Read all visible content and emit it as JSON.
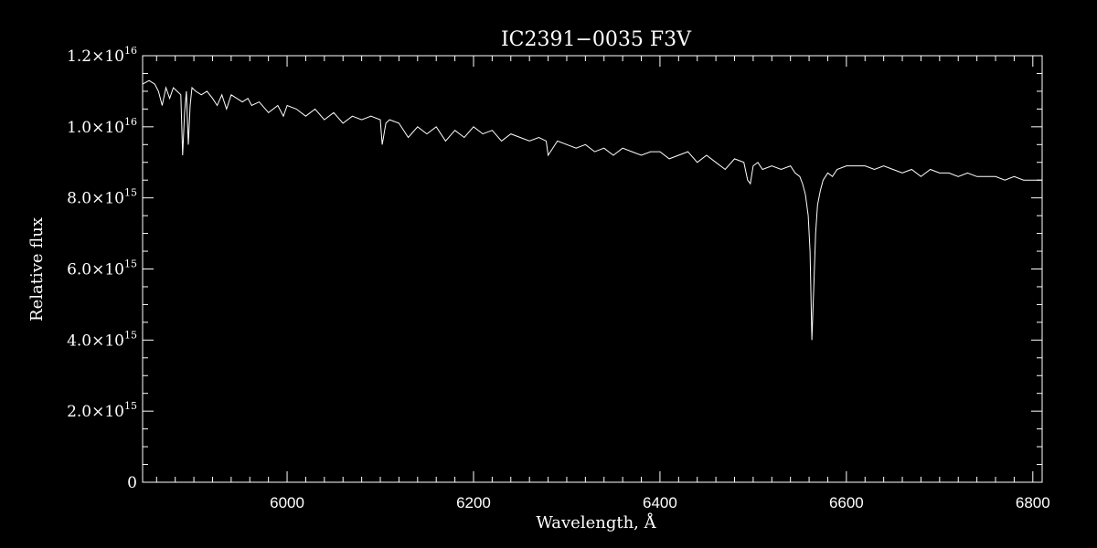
{
  "chart_data": {
    "type": "line",
    "title": "IC2391−0035   F3V",
    "xlabel": "Wavelength, Å",
    "ylabel": "Relative flux",
    "xlim": [
      5845,
      6810
    ],
    "ylim": [
      0,
      1.2e+16
    ],
    "x_ticks": [
      {
        "value": 6000,
        "label": "6000"
      },
      {
        "value": 6200,
        "label": "6200"
      },
      {
        "value": 6400,
        "label": "6400"
      },
      {
        "value": 6600,
        "label": "6600"
      },
      {
        "value": 6800,
        "label": "6800"
      }
    ],
    "y_ticks": [
      {
        "value": 0,
        "mantissa": "0",
        "exp": ""
      },
      {
        "value": 2000000000000000.0,
        "mantissa": "2.0×10",
        "exp": "15"
      },
      {
        "value": 4000000000000000.0,
        "mantissa": "4.0×10",
        "exp": "15"
      },
      {
        "value": 6000000000000000.0,
        "mantissa": "6.0×10",
        "exp": "15"
      },
      {
        "value": 8000000000000000.0,
        "mantissa": "8.0×10",
        "exp": "15"
      },
      {
        "value": 1e+16,
        "mantissa": "1.0×10",
        "exp": "16"
      },
      {
        "value": 1.2e+16,
        "mantissa": "1.2×10",
        "exp": "16"
      }
    ],
    "grid": false,
    "line_color": "#ffffff",
    "background_color": "#000000",
    "series": [
      {
        "x": [
          5845,
          5852,
          5858,
          5862,
          5866,
          5870,
          5874,
          5878,
          5882,
          5886,
          5888,
          5890,
          5892,
          5894,
          5896,
          5898,
          5902,
          5908,
          5914,
          5920,
          5925,
          5930,
          5935,
          5940,
          5946,
          5952,
          5958,
          5962,
          5970,
          5980,
          5990,
          5996,
          6000,
          6010,
          6020,
          6025,
          6030,
          6040,
          6050,
          6060,
          6070,
          6080,
          6090,
          6100,
          6102,
          6106,
          6110,
          6120,
          6130,
          6140,
          6150,
          6160,
          6170,
          6180,
          6190,
          6200,
          6210,
          6220,
          6230,
          6240,
          6250,
          6260,
          6270,
          6278,
          6280,
          6290,
          6300,
          6310,
          6320,
          6330,
          6340,
          6350,
          6360,
          6370,
          6380,
          6390,
          6400,
          6410,
          6420,
          6430,
          6440,
          6450,
          6460,
          6470,
          6480,
          6490,
          6494,
          6497,
          6500,
          6505,
          6510,
          6520,
          6530,
          6540,
          6545,
          6550,
          6553,
          6556,
          6559,
          6561,
          6563,
          6565,
          6567,
          6569,
          6572,
          6575,
          6580,
          6585,
          6590,
          6600,
          6610,
          6620,
          6630,
          6640,
          6650,
          6660,
          6670,
          6680,
          6690,
          6700,
          6710,
          6720,
          6730,
          6740,
          6750,
          6760,
          6770,
          6780,
          6790,
          6800,
          6810
        ],
        "values": [
          1.12e+16,
          1.13e+16,
          1.12e+16,
          1.1e+16,
          1.06e+16,
          1.11e+16,
          1.08e+16,
          1.11e+16,
          1.1e+16,
          1.09e+16,
          9200000000000000.0,
          1.04e+16,
          1.1e+16,
          9500000000000000.0,
          1.06e+16,
          1.11e+16,
          1.1e+16,
          1.09e+16,
          1.1e+16,
          1.08e+16,
          1.06e+16,
          1.09e+16,
          1.05e+16,
          1.09e+16,
          1.08e+16,
          1.07e+16,
          1.08e+16,
          1.06e+16,
          1.07e+16,
          1.04e+16,
          1.06e+16,
          1.03e+16,
          1.06e+16,
          1.05e+16,
          1.03e+16,
          1.04e+16,
          1.05e+16,
          1.02e+16,
          1.04e+16,
          1.01e+16,
          1.03e+16,
          1.02e+16,
          1.03e+16,
          1.02e+16,
          9500000000000000.0,
          1.01e+16,
          1.02e+16,
          1.01e+16,
          9700000000000000.0,
          1e+16,
          9800000000000000.0,
          1e+16,
          9600000000000000.0,
          9900000000000000.0,
          9700000000000000.0,
          1e+16,
          9800000000000000.0,
          9900000000000000.0,
          9600000000000000.0,
          9800000000000000.0,
          9700000000000000.0,
          9600000000000000.0,
          9700000000000000.0,
          9600000000000000.0,
          9200000000000000.0,
          9600000000000000.0,
          9500000000000000.0,
          9400000000000000.0,
          9500000000000000.0,
          9300000000000000.0,
          9400000000000000.0,
          9200000000000000.0,
          9400000000000000.0,
          9300000000000000.0,
          9200000000000000.0,
          9300000000000000.0,
          9300000000000000.0,
          9100000000000000.0,
          9200000000000000.0,
          9300000000000000.0,
          9000000000000000.0,
          9200000000000000.0,
          9000000000000000.0,
          8800000000000000.0,
          9100000000000000.0,
          9000000000000000.0,
          8500000000000000.0,
          8400000000000000.0,
          8900000000000000.0,
          9000000000000000.0,
          8800000000000000.0,
          8900000000000000.0,
          8800000000000000.0,
          8900000000000000.0,
          8700000000000000.0,
          8600000000000000.0,
          8400000000000000.0,
          8100000000000000.0,
          7500000000000000.0,
          6500000000000000.0,
          4000000000000000.0,
          5500000000000000.0,
          7000000000000000.0,
          7800000000000000.0,
          8200000000000000.0,
          8500000000000000.0,
          8700000000000000.0,
          8600000000000000.0,
          8800000000000000.0,
          8900000000000000.0,
          8900000000000000.0,
          8900000000000000.0,
          8800000000000000.0,
          8900000000000000.0,
          8800000000000000.0,
          8700000000000000.0,
          8800000000000000.0,
          8600000000000000.0,
          8800000000000000.0,
          8700000000000000.0,
          8700000000000000.0,
          8600000000000000.0,
          8700000000000000.0,
          8600000000000000.0,
          8600000000000000.0,
          8600000000000000.0,
          8500000000000000.0,
          8600000000000000.0,
          8500000000000000.0,
          8500000000000000.0,
          8500000000000000.0
        ]
      }
    ]
  }
}
